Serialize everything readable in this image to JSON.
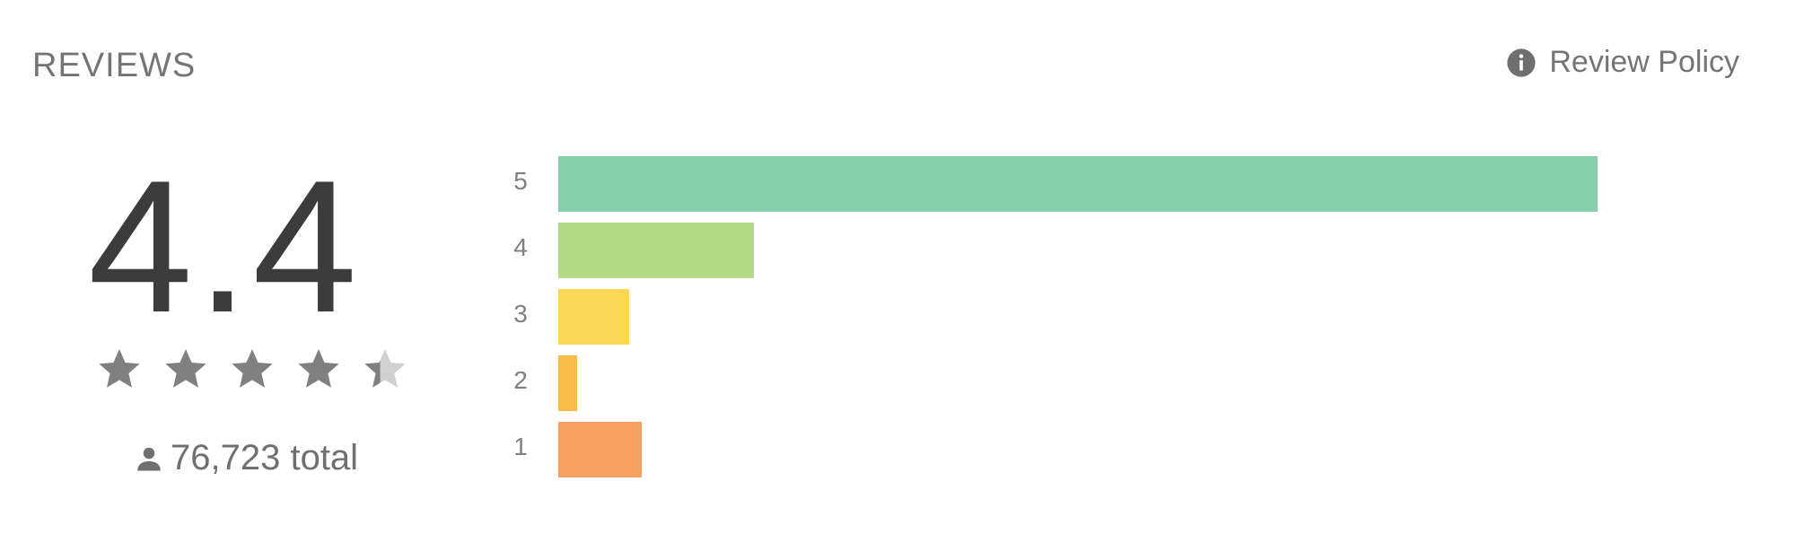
{
  "header": {
    "title": "REVIEWS",
    "policy_label": "Review Policy",
    "policy_icon": "info-icon"
  },
  "summary": {
    "score": "4.4",
    "rating": 4.4,
    "max_rating": 5,
    "total_text": "76,723 total",
    "total_icon": "person-icon",
    "star_icon": "star-icon",
    "star_color": "#808080",
    "star_empty_color": "#d0d0d0"
  },
  "histogram": {
    "rows": [
      {
        "label": "5",
        "fraction": 1.0,
        "color": "#87CEAA"
      },
      {
        "label": "4",
        "fraction": 0.188,
        "color": "#B3DB85"
      },
      {
        "label": "3",
        "fraction": 0.068,
        "color": "#FCD856"
      },
      {
        "label": "2",
        "fraction": 0.018,
        "color": "#FBBA4A"
      },
      {
        "label": "1",
        "fraction": 0.08,
        "color": "#F7A05F"
      }
    ]
  }
}
